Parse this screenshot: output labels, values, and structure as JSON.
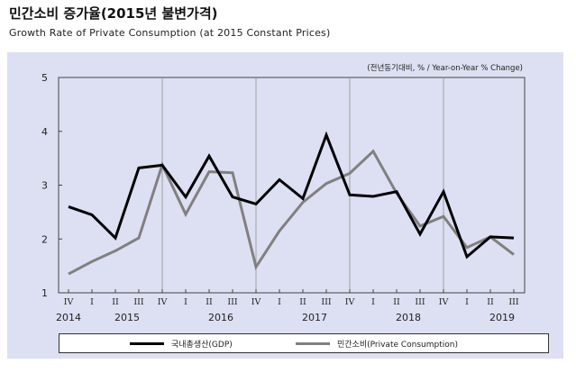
{
  "chart_data": {
    "type": "line",
    "title": "민간소비 증가율(2015년 불변가격)",
    "subtitle": "Growth Rate of Private Consumption (at 2015 Constant Prices)",
    "unit_note": "(전년동기대비,  % / Year-on-Year  % Change)",
    "ylim": [
      1,
      5
    ],
    "yticks": [
      "1",
      "2",
      "3",
      "4",
      "5"
    ],
    "grid": "vertical year dividers",
    "categories": [
      "IV",
      "I",
      "II",
      "III",
      "IV",
      "I",
      "II",
      "III",
      "IV",
      "I",
      "II",
      "III",
      "IV",
      "I",
      "II",
      "III",
      "IV",
      "I",
      "II",
      "III"
    ],
    "year_labels": [
      {
        "label": "2014",
        "index": 0
      },
      {
        "label": "2015",
        "index": 2.5
      },
      {
        "label": "2016",
        "index": 6.5
      },
      {
        "label": "2017",
        "index": 10.5
      },
      {
        "label": "2018",
        "index": 14.5
      },
      {
        "label": "2019",
        "index": 18.5
      }
    ],
    "series": [
      {
        "name": "국내총생산(GDP)",
        "color": "#000000",
        "values": [
          2.6,
          2.45,
          2.02,
          3.32,
          3.37,
          2.78,
          3.54,
          2.78,
          2.65,
          3.1,
          2.75,
          3.93,
          2.82,
          2.79,
          2.88,
          2.09,
          2.88,
          1.67,
          2.04,
          2.02
        ]
      },
      {
        "name": "민간소비(Private  Consumption)",
        "color": "#808080",
        "values": [
          1.35,
          1.58,
          1.78,
          2.02,
          3.38,
          2.46,
          3.25,
          3.23,
          1.48,
          2.15,
          2.68,
          3.03,
          3.22,
          3.63,
          2.85,
          2.24,
          2.42,
          1.84,
          2.04,
          1.71
        ]
      }
    ],
    "legend_position": "bottom"
  }
}
